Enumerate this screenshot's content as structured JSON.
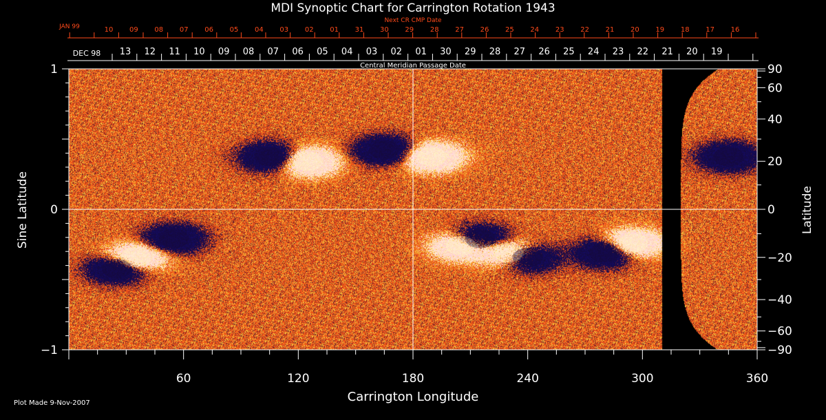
{
  "chart_data": {
    "type": "heatmap",
    "title": "MDI Synoptic Chart for Carrington Rotation 1943",
    "xlabel": "Carrington Longitude",
    "ylabel_left": "Sine Latitude",
    "ylabel_right": "Latitude",
    "xlim": [
      0,
      360
    ],
    "ylim": [
      -1,
      1
    ],
    "x_ticks": [
      "60",
      "120",
      "180",
      "240",
      "300",
      "360"
    ],
    "y_left_ticks": [
      "1",
      "0",
      "−1"
    ],
    "y_right_ticks": [
      "90",
      "60",
      "40",
      "20",
      "0",
      "−20",
      "−40",
      "−60",
      "−90"
    ],
    "top_axis_title": "Next CR CMP Date",
    "top_axis_start_label": "JAN 99",
    "top_axis_days": [
      "10",
      "09",
      "08",
      "07",
      "06",
      "05",
      "04",
      "03",
      "02",
      "01",
      "31",
      "30",
      "29",
      "28",
      "27",
      "26",
      "25",
      "24",
      "23",
      "22",
      "21",
      "20",
      "19",
      "18",
      "17",
      "16"
    ],
    "middle_axis_start_label": "DEC 98",
    "middle_axis_days": [
      "13",
      "12",
      "11",
      "10",
      "09",
      "08",
      "07",
      "06",
      "05",
      "04",
      "03",
      "02",
      "01",
      "30",
      "29",
      "28",
      "27",
      "26",
      "25",
      "24",
      "23",
      "22",
      "21",
      "20",
      "19"
    ],
    "bottom_axis_title": "Central Meridian Passage Date",
    "data_gap_longitude": [
      310,
      320
    ],
    "regions": [
      {
        "polarity": "positive",
        "lon": 35,
        "lat": -20
      },
      {
        "polarity": "negative",
        "lon": 55,
        "lat": -12
      },
      {
        "polarity": "negative",
        "lon": 25,
        "lat": -25
      },
      {
        "polarity": "negative",
        "lon": 105,
        "lat": 22
      },
      {
        "polarity": "positive",
        "lon": 125,
        "lat": 20
      },
      {
        "polarity": "negative",
        "lon": 165,
        "lat": 25
      },
      {
        "polarity": "positive",
        "lon": 190,
        "lat": 22
      },
      {
        "polarity": "positive",
        "lon": 205,
        "lat": -15
      },
      {
        "polarity": "negative",
        "lon": 215,
        "lat": -12
      },
      {
        "polarity": "positive",
        "lon": 230,
        "lat": -18
      },
      {
        "polarity": "negative",
        "lon": 240,
        "lat": -20
      },
      {
        "polarity": "negative",
        "lon": 280,
        "lat": -18
      },
      {
        "polarity": "positive",
        "lon": 295,
        "lat": -14
      },
      {
        "polarity": "negative",
        "lon": 345,
        "lat": 22
      }
    ]
  },
  "footer": {
    "plot_made": "Plot Made  9-Nov-2007"
  },
  "colors": {
    "background": "#000000",
    "field": "#e8521a",
    "positive": "#fff6c8",
    "negative": "#150a3a",
    "top_axis": "#ff4a1a",
    "axes": "#ffffff"
  }
}
